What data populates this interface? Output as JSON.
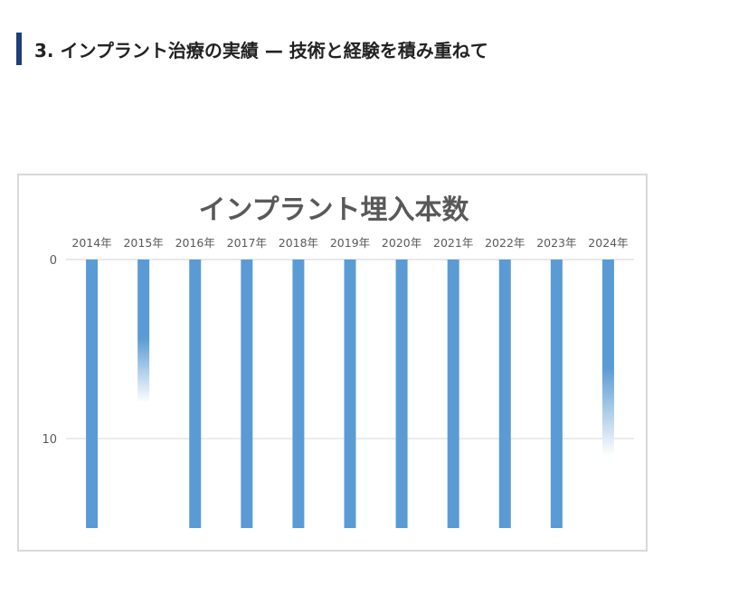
{
  "heading": {
    "text": "3. インプラント治療の実績 — 技術と経験を積み重ねて"
  },
  "chart_data": {
    "type": "bar",
    "title": "インプラント埋入本数",
    "categories": [
      "2014年",
      "2015年",
      "2016年",
      "2017年",
      "2018年",
      "2019年",
      "2020年",
      "2021年",
      "2022年",
      "2023年",
      "2024年"
    ],
    "values": [
      15,
      8,
      15,
      15,
      15,
      15,
      15,
      15,
      15,
      15,
      11
    ],
    "y_ticks": [
      0,
      10
    ],
    "ylim": [
      0,
      15
    ],
    "y_axis_reversed": true,
    "category_axis_position": "top",
    "grid": true,
    "legend": "none",
    "colors": {
      "bar": "#5b9bd5",
      "bar_fade": "#ffffff",
      "title": "#595959",
      "tick_label": "#595959",
      "gridline": "#d9d9d9",
      "heading_bar": "#1f3f7a"
    }
  }
}
